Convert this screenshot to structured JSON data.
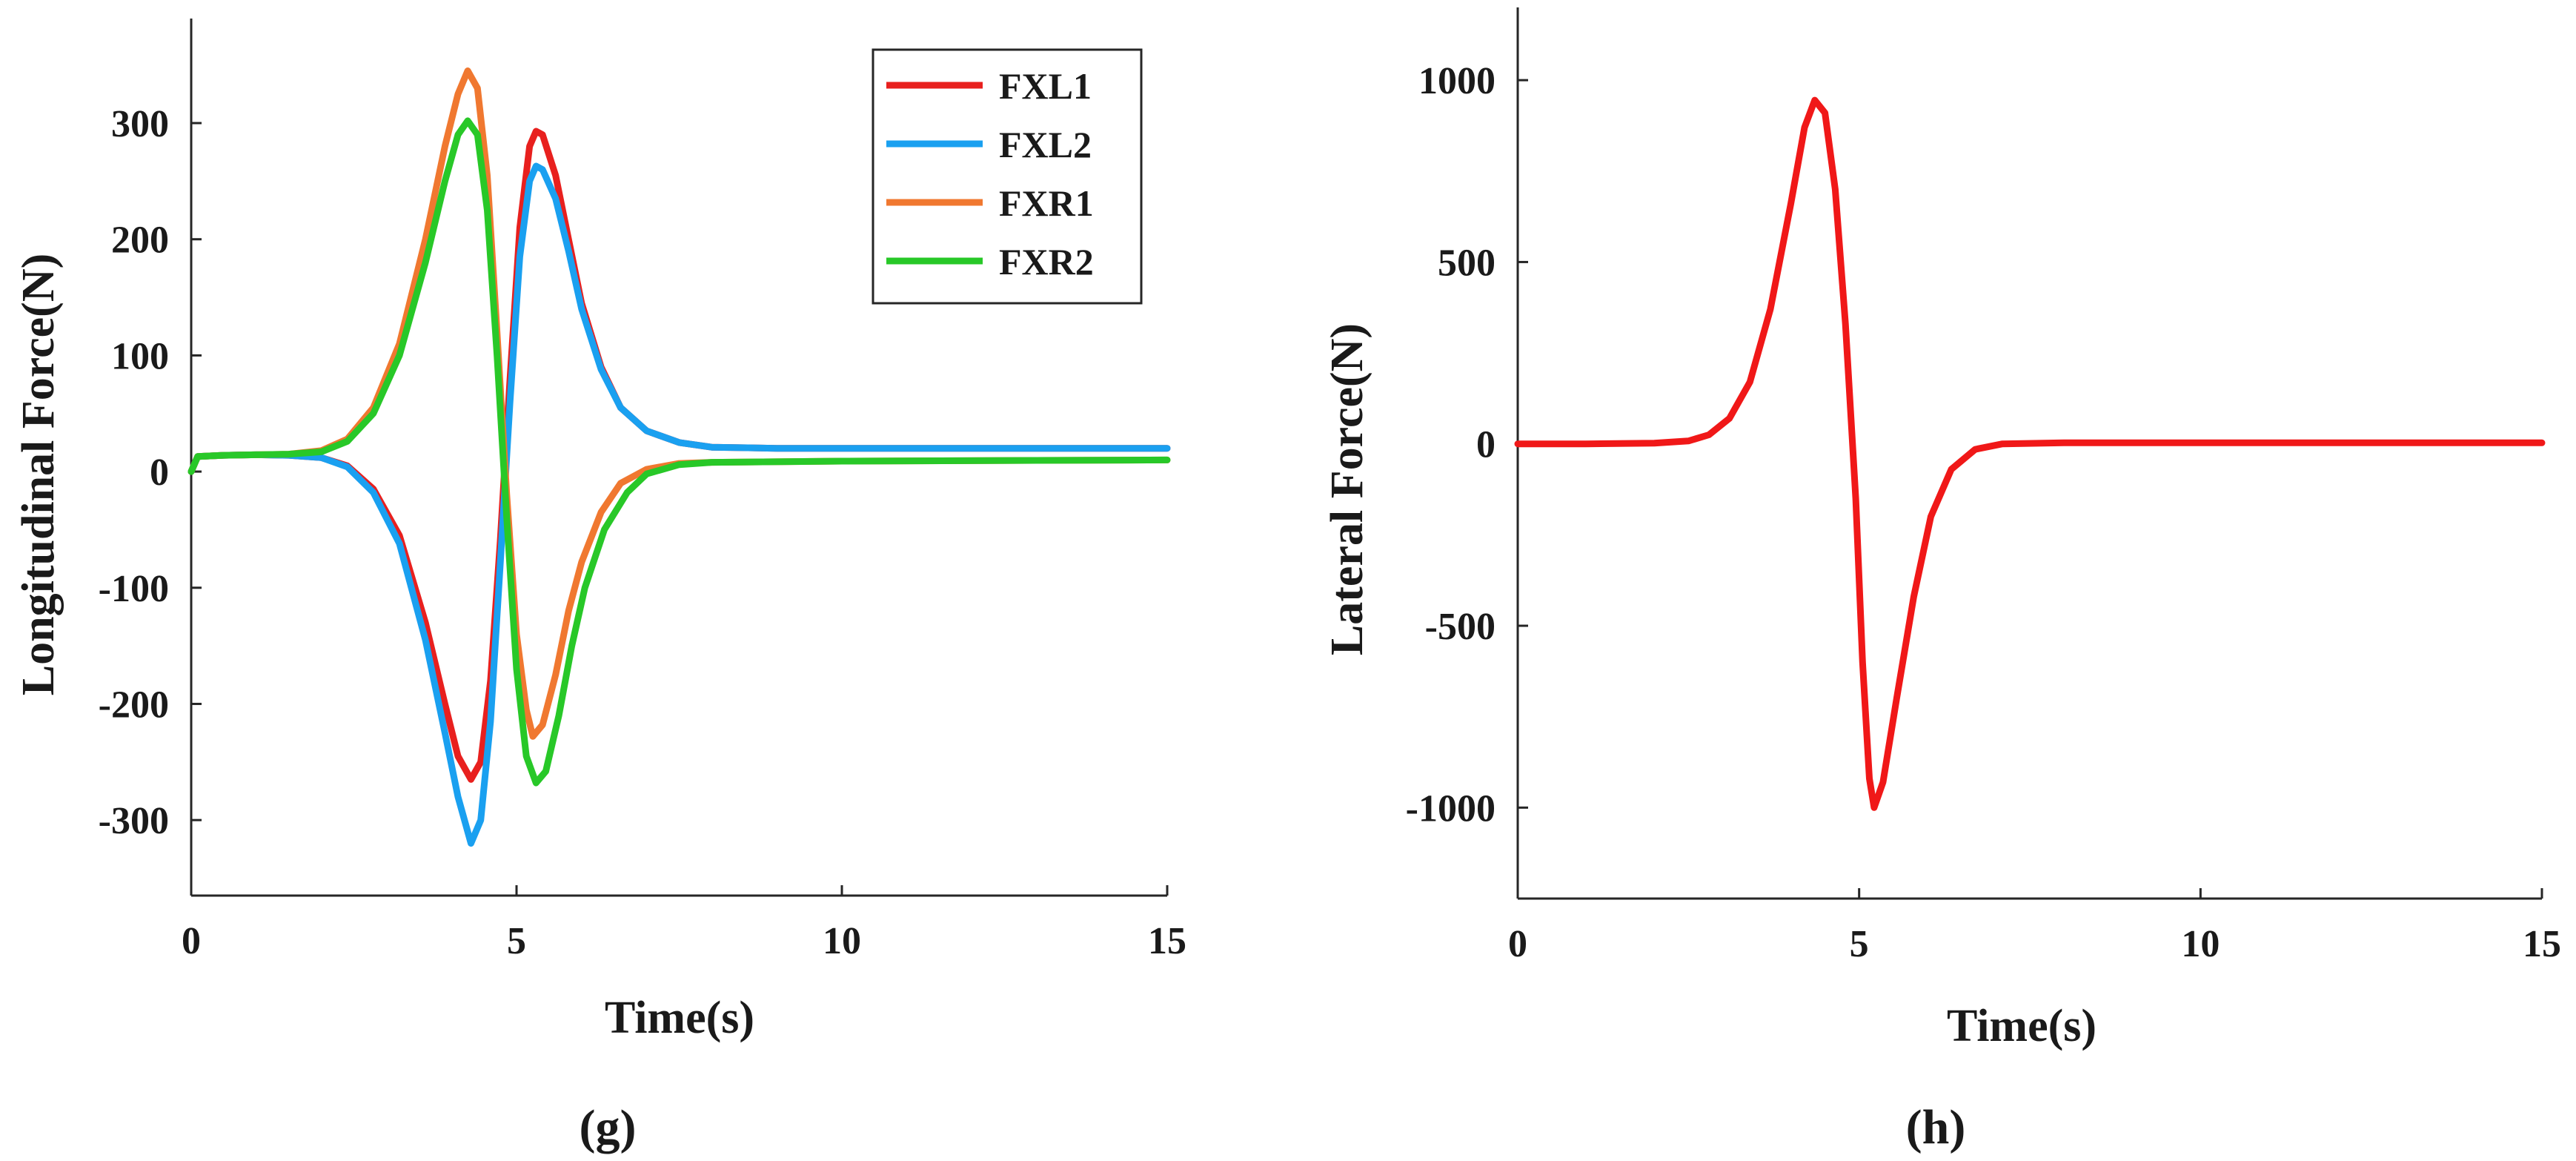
{
  "chart_data": [
    {
      "panel": "g",
      "type": "line",
      "caption": "(g)",
      "xlabel": "Time(s)",
      "ylabel": "Longitudinal Force(N)",
      "xlim": [
        0,
        15
      ],
      "ylim": [
        -365,
        390
      ],
      "xticks": [
        0,
        5,
        10,
        15
      ],
      "yticks": [
        -300,
        -200,
        -100,
        0,
        100,
        200,
        300
      ],
      "grid": false,
      "legend_position": "top-right",
      "series": [
        {
          "name": "FXL1",
          "color": "#e8201e",
          "points": [
            [
              0,
              0
            ],
            [
              0.1,
              13
            ],
            [
              0.5,
              14
            ],
            [
              1,
              14.5
            ],
            [
              1.5,
              14
            ],
            [
              2,
              12
            ],
            [
              2.4,
              5
            ],
            [
              2.8,
              -15
            ],
            [
              3.2,
              -55
            ],
            [
              3.6,
              -130
            ],
            [
              3.9,
              -200
            ],
            [
              4.1,
              -245
            ],
            [
              4.3,
              -265
            ],
            [
              4.45,
              -250
            ],
            [
              4.6,
              -180
            ],
            [
              4.75,
              -60
            ],
            [
              4.9,
              80
            ],
            [
              5.05,
              210
            ],
            [
              5.2,
              280
            ],
            [
              5.3,
              293
            ],
            [
              5.4,
              290
            ],
            [
              5.6,
              255
            ],
            [
              5.8,
              200
            ],
            [
              6.0,
              145
            ],
            [
              6.3,
              90
            ],
            [
              6.6,
              55
            ],
            [
              7.0,
              35
            ],
            [
              7.5,
              25
            ],
            [
              8,
              21
            ],
            [
              9,
              20
            ],
            [
              10,
              20
            ],
            [
              12,
              20
            ],
            [
              15,
              20
            ]
          ]
        },
        {
          "name": "FXL2",
          "color": "#1aa0f0",
          "points": [
            [
              0,
              0
            ],
            [
              0.1,
              13
            ],
            [
              0.5,
              14
            ],
            [
              1,
              14.5
            ],
            [
              1.5,
              14
            ],
            [
              2,
              12
            ],
            [
              2.4,
              4
            ],
            [
              2.8,
              -18
            ],
            [
              3.2,
              -62
            ],
            [
              3.6,
              -145
            ],
            [
              3.9,
              -225
            ],
            [
              4.1,
              -280
            ],
            [
              4.3,
              -320
            ],
            [
              4.45,
              -300
            ],
            [
              4.6,
              -215
            ],
            [
              4.75,
              -80
            ],
            [
              4.9,
              60
            ],
            [
              5.05,
              185
            ],
            [
              5.2,
              250
            ],
            [
              5.3,
              263
            ],
            [
              5.4,
              260
            ],
            [
              5.6,
              235
            ],
            [
              5.8,
              190
            ],
            [
              6.0,
              140
            ],
            [
              6.3,
              88
            ],
            [
              6.6,
              55
            ],
            [
              7.0,
              35
            ],
            [
              7.5,
              25
            ],
            [
              8,
              21
            ],
            [
              9,
              20
            ],
            [
              10,
              20
            ],
            [
              12,
              20
            ],
            [
              15,
              20
            ]
          ]
        },
        {
          "name": "FXR1",
          "color": "#f07830",
          "points": [
            [
              0,
              0
            ],
            [
              0.1,
              13
            ],
            [
              0.5,
              14
            ],
            [
              1,
              14.5
            ],
            [
              1.5,
              15
            ],
            [
              2,
              18
            ],
            [
              2.4,
              28
            ],
            [
              2.8,
              55
            ],
            [
              3.2,
              110
            ],
            [
              3.6,
              200
            ],
            [
              3.9,
              280
            ],
            [
              4.1,
              325
            ],
            [
              4.25,
              345
            ],
            [
              4.4,
              330
            ],
            [
              4.55,
              255
            ],
            [
              4.7,
              120
            ],
            [
              4.85,
              -20
            ],
            [
              5.0,
              -140
            ],
            [
              5.15,
              -205
            ],
            [
              5.25,
              -228
            ],
            [
              5.4,
              -218
            ],
            [
              5.6,
              -175
            ],
            [
              5.8,
              -120
            ],
            [
              6.0,
              -78
            ],
            [
              6.3,
              -35
            ],
            [
              6.6,
              -10
            ],
            [
              7.0,
              2
            ],
            [
              7.5,
              7
            ],
            [
              8,
              8
            ],
            [
              10,
              9
            ],
            [
              15,
              10
            ]
          ]
        },
        {
          "name": "FXR2",
          "color": "#28c828",
          "points": [
            [
              0,
              0
            ],
            [
              0.1,
              13
            ],
            [
              0.5,
              14
            ],
            [
              1,
              14.5
            ],
            [
              1.5,
              15
            ],
            [
              2,
              17
            ],
            [
              2.4,
              26
            ],
            [
              2.8,
              50
            ],
            [
              3.2,
              100
            ],
            [
              3.6,
              180
            ],
            [
              3.9,
              250
            ],
            [
              4.1,
              290
            ],
            [
              4.25,
              302
            ],
            [
              4.4,
              290
            ],
            [
              4.55,
              225
            ],
            [
              4.7,
              100
            ],
            [
              4.85,
              -40
            ],
            [
              5.0,
              -170
            ],
            [
              5.15,
              -245
            ],
            [
              5.3,
              -268
            ],
            [
              5.45,
              -258
            ],
            [
              5.65,
              -210
            ],
            [
              5.85,
              -150
            ],
            [
              6.05,
              -100
            ],
            [
              6.35,
              -50
            ],
            [
              6.7,
              -18
            ],
            [
              7.0,
              -2
            ],
            [
              7.5,
              6
            ],
            [
              8,
              8
            ],
            [
              10,
              9
            ],
            [
              15,
              10
            ]
          ]
        }
      ]
    },
    {
      "panel": "h",
      "type": "line",
      "caption": "(h)",
      "xlabel": "Time(s)",
      "ylabel": "Lateral Force(N)",
      "xlim": [
        0,
        15
      ],
      "ylim": [
        -1250,
        1200
      ],
      "xticks": [
        0,
        5,
        10,
        15
      ],
      "yticks": [
        -1000,
        -500,
        0,
        500,
        1000
      ],
      "grid": false,
      "legend_position": "none",
      "series": [
        {
          "color": "#f01818",
          "points": [
            [
              0,
              0
            ],
            [
              1,
              0
            ],
            [
              2,
              2
            ],
            [
              2.5,
              8
            ],
            [
              2.8,
              25
            ],
            [
              3.1,
              70
            ],
            [
              3.4,
              170
            ],
            [
              3.7,
              370
            ],
            [
              4.0,
              660
            ],
            [
              4.2,
              870
            ],
            [
              4.35,
              945
            ],
            [
              4.5,
              910
            ],
            [
              4.65,
              700
            ],
            [
              4.8,
              330
            ],
            [
              4.95,
              -150
            ],
            [
              5.05,
              -600
            ],
            [
              5.15,
              -920
            ],
            [
              5.22,
              -1000
            ],
            [
              5.35,
              -930
            ],
            [
              5.55,
              -700
            ],
            [
              5.8,
              -420
            ],
            [
              6.05,
              -200
            ],
            [
              6.35,
              -70
            ],
            [
              6.7,
              -15
            ],
            [
              7.1,
              0
            ],
            [
              8,
              3
            ],
            [
              10,
              3
            ],
            [
              15,
              3
            ]
          ]
        }
      ]
    }
  ]
}
